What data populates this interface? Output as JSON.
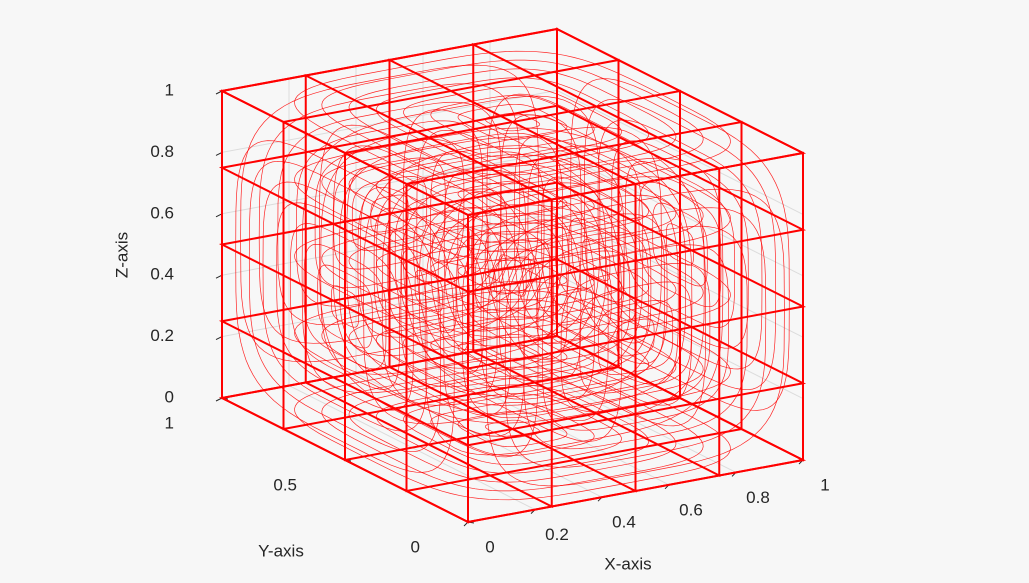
{
  "chart_data": {
    "type": "wireframe3d",
    "xlabel": "X-axis",
    "ylabel": "Y-axis",
    "zlabel": "Z-axis",
    "xlim": [
      0,
      1
    ],
    "ylim": [
      0,
      1
    ],
    "zlim": [
      0,
      1
    ],
    "xticks": [
      0,
      0.2,
      0.4,
      0.6,
      0.8,
      1
    ],
    "yticks": [
      0,
      0.5,
      1
    ],
    "zticks": [
      0,
      0.2,
      0.4,
      0.6,
      0.8,
      1
    ],
    "x_slices": [
      0,
      0.25,
      0.5,
      0.75,
      1
    ],
    "y_slices": [
      0,
      0.25,
      0.5,
      0.75,
      1
    ],
    "z_slices": [
      0,
      0.25,
      0.5,
      0.75,
      1
    ],
    "color": "#ff0000",
    "grid": true
  }
}
